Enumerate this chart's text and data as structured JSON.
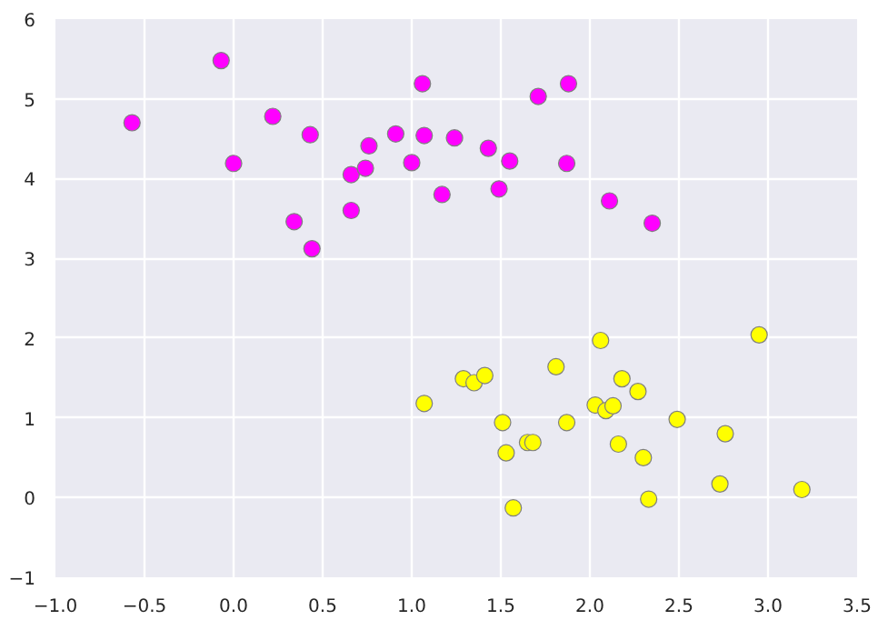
{
  "chart_data": {
    "type": "scatter",
    "marker": "circle",
    "grid": true,
    "xlim": [
      -1.0,
      3.5
    ],
    "xticks": [
      {
        "value": -1,
        "label": "−1.0"
      },
      {
        "value": -0.5,
        "label": "−0.5"
      },
      {
        "value": 0,
        "label": "0.0"
      },
      {
        "value": 0.5,
        "label": "0.5"
      },
      {
        "value": 1,
        "label": "1.0"
      },
      {
        "value": 1.5,
        "label": "1.5"
      },
      {
        "value": 2,
        "label": "2.0"
      },
      {
        "value": 2.5,
        "label": "2.5"
      },
      {
        "value": 3,
        "label": "3.0"
      },
      {
        "value": 3.5,
        "label": "3.5"
      }
    ],
    "ylim": [
      -1,
      6
    ],
    "yticks": [
      {
        "value": -1,
        "label": "−1"
      },
      0,
      1,
      2,
      3,
      4,
      5,
      6
    ],
    "series": [
      {
        "color": "#ff00ff",
        "x": [
          -0.57,
          -0.07,
          0.0,
          0.22,
          0.34,
          0.43,
          0.44,
          0.66,
          0.66,
          0.74,
          0.76,
          0.91,
          1.0,
          1.06,
          1.07,
          1.17,
          1.24,
          1.43,
          1.49,
          1.55,
          1.71,
          1.88,
          1.87,
          2.11,
          2.35
        ],
        "values": [
          4.7,
          5.48,
          4.19,
          4.78,
          3.46,
          4.55,
          3.12,
          4.05,
          3.6,
          4.13,
          4.41,
          4.56,
          4.2,
          5.19,
          4.54,
          3.8,
          4.51,
          4.38,
          3.87,
          4.22,
          5.03,
          5.19,
          4.19,
          3.72,
          3.44
        ]
      },
      {
        "color": "#ffff00",
        "x": [
          1.07,
          1.29,
          1.35,
          1.41,
          1.51,
          1.53,
          1.57,
          1.65,
          1.68,
          1.81,
          1.87,
          2.03,
          2.06,
          2.09,
          2.13,
          2.16,
          2.18,
          2.27,
          2.3,
          2.33,
          2.49,
          2.73,
          2.76,
          2.95,
          3.19
        ],
        "values": [
          1.18,
          1.49,
          1.44,
          1.53,
          0.94,
          0.56,
          -0.13,
          0.69,
          0.69,
          1.64,
          0.94,
          1.16,
          1.97,
          1.09,
          1.15,
          0.67,
          1.49,
          1.33,
          0.5,
          -0.02,
          0.98,
          0.17,
          0.8,
          2.04,
          0.1
        ]
      }
    ]
  }
}
